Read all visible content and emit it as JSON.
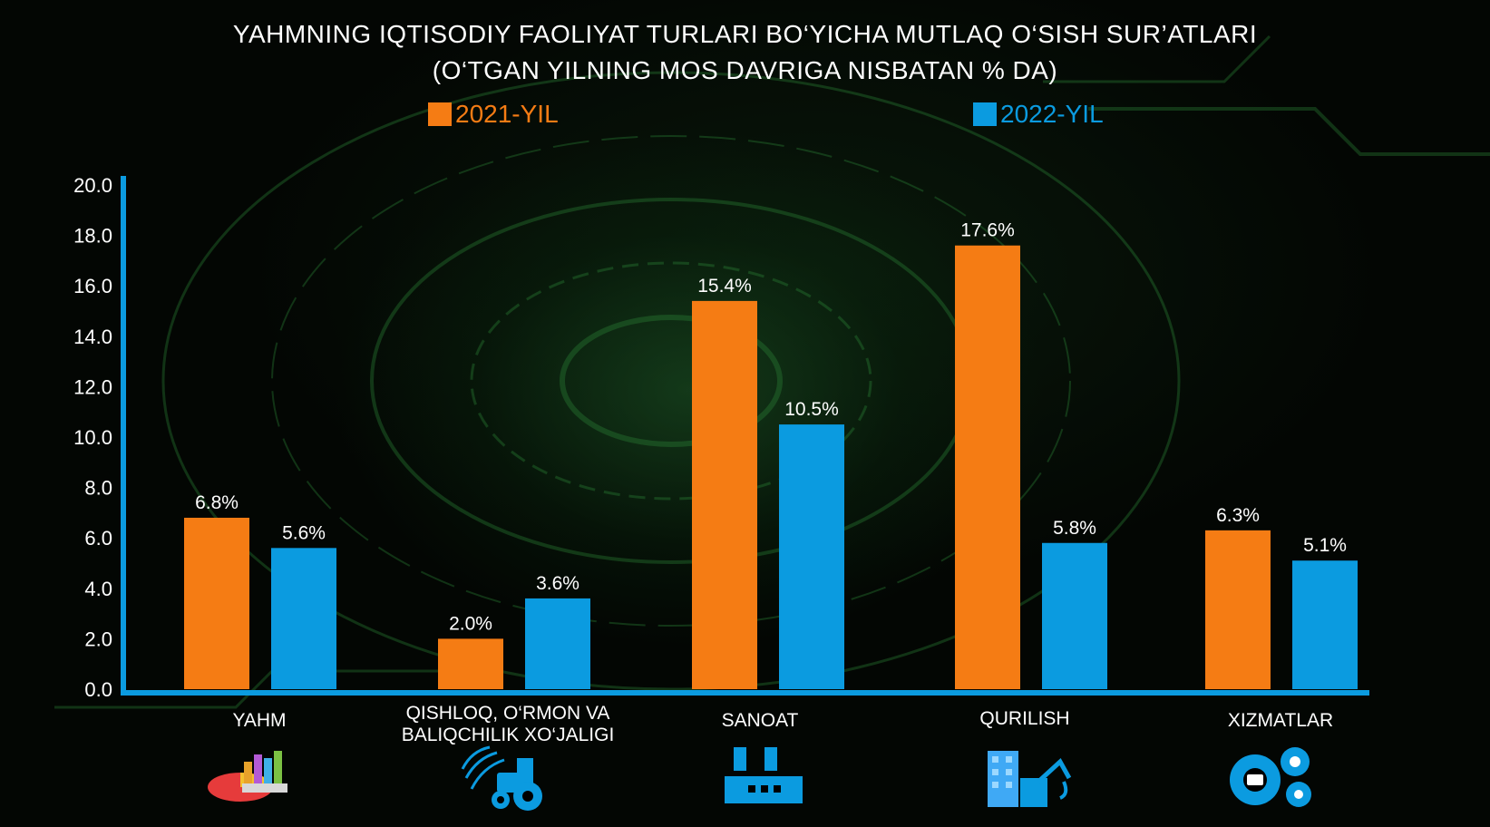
{
  "title_line1": "YAHMNING IQTISODIY FAOLIYAT TURLARI BO‘YICHA MUTLAQ O‘SISH SUR’ATLARI",
  "title_line2": "(O‘TGAN YILNING MOS DAVRIGA NISBATAN % DA)",
  "legend": [
    {
      "label": "2021-YIL",
      "color": "#f57c14"
    },
    {
      "label": "2022-YIL",
      "color": "#0b9be0"
    }
  ],
  "colors": {
    "axis": "#0b9be0",
    "text": "#ffffff"
  },
  "icons": [
    "pie-chart-icon",
    "tractor-icon",
    "factory-icon",
    "construction-icon",
    "gears-icon"
  ],
  "chart_data": {
    "type": "bar",
    "title": "YAHMNING IQTISODIY FAOLIYAT TURLARI BO‘YICHA MUTLAQ O‘SISH SUR’ATLARI (O‘TGAN YILNING MOS DAVRIGA NISBATAN % DA)",
    "categories": [
      "YAHM",
      "QISHLOQ, O‘RMON VA BALIQCHILIK XO‘JALIGI",
      "SANOAT",
      "QURILISH",
      "XIZMATLAR"
    ],
    "category_lines": [
      [
        "YAHM"
      ],
      [
        "QISHLOQ, O‘RMON VA",
        "BALIQCHILIK XO‘JALIGI"
      ],
      [
        "SANOAT"
      ],
      [
        "QURILISH"
      ],
      [
        "XIZMATLAR"
      ]
    ],
    "series": [
      {
        "name": "2021-YIL",
        "values": [
          6.8,
          2.0,
          15.4,
          17.6,
          6.3
        ],
        "labels": [
          "6.8%",
          "2.0%",
          "15.4%",
          "17.6%",
          "6.3%"
        ]
      },
      {
        "name": "2022-YIL",
        "values": [
          5.6,
          3.6,
          10.5,
          5.8,
          5.1
        ],
        "labels": [
          "5.6%",
          "3.6%",
          "10.5%",
          "5.8%",
          "5.1%"
        ]
      }
    ],
    "yticks": [
      "0.0",
      "2.0",
      "4.0",
      "6.0",
      "8.0",
      "10.0",
      "12.0",
      "14.0",
      "16.0",
      "18.0",
      "20.0"
    ],
    "ylim": [
      0,
      20
    ],
    "grid": false,
    "legend_position": "top-center",
    "xlabel": "",
    "ylabel": ""
  }
}
